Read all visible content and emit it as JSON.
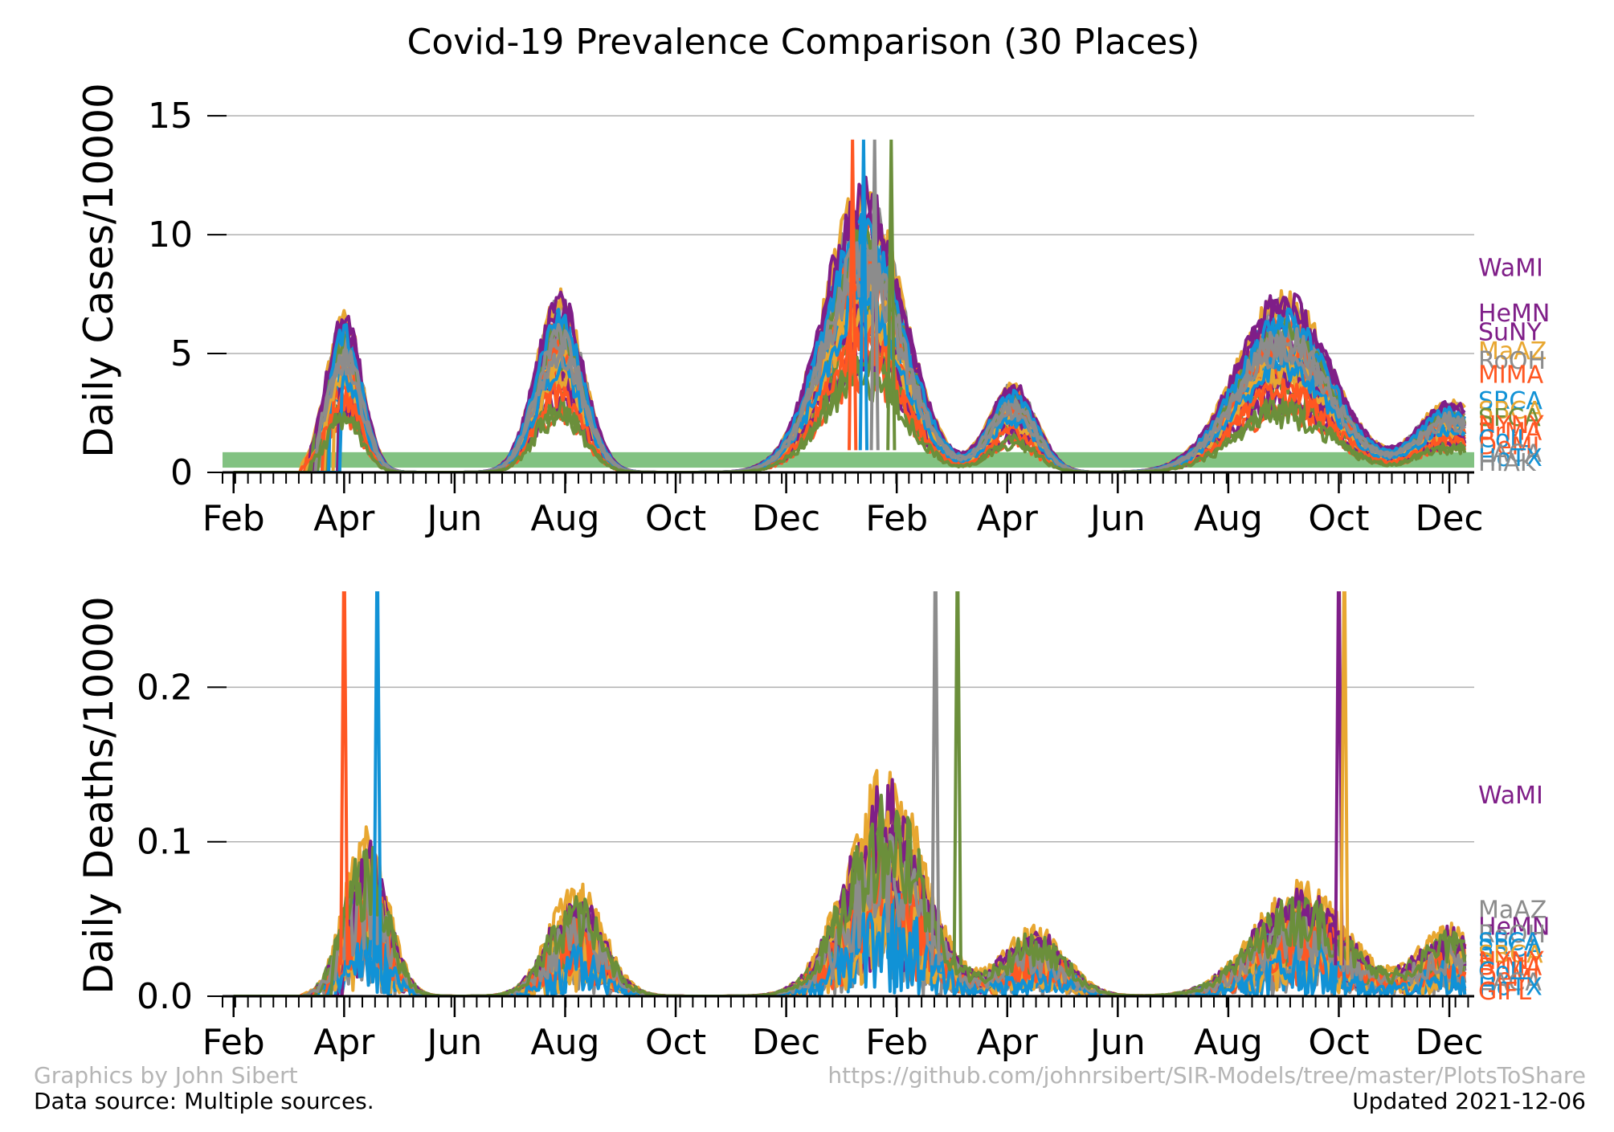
{
  "chart_data": {
    "title": "Covid-19 Prevalence Comparison (30 Places)",
    "type": "line",
    "footer": {
      "credit": "Graphics by John Sibert",
      "source": "Data source: Multiple sources.",
      "url": "https://github.com/johnrsibert/SIR-Models/tree/master/PlotsToShare",
      "updated": "Updated 2021-12-06"
    },
    "x_ticks": [
      "Feb",
      "Apr",
      "Jun",
      "Aug",
      "Oct",
      "Dec",
      "Feb",
      "Apr",
      "Jun",
      "Aug",
      "Oct",
      "Dec"
    ],
    "x_tick_months": [
      1,
      3,
      5,
      7,
      9,
      11,
      13,
      15,
      17,
      19,
      21,
      23
    ],
    "x_range_months": [
      0.8,
      23.45
    ],
    "colors": [
      "#7f1e88",
      "#e8a731",
      "#ff5722",
      "#1192d6",
      "#8c8c8c",
      "#6b8f3b"
    ],
    "panels": [
      {
        "ylabel": "Daily Cases/10000",
        "ylim": [
          0,
          17
        ],
        "yticks": [
          "0",
          "5",
          "10",
          "15"
        ],
        "ytick_values": [
          0,
          5,
          10,
          15
        ],
        "grid": true,
        "band": {
          "from": 0.2,
          "to": 0.85,
          "color": "#2e9a2e"
        },
        "spike_height": 14,
        "end_labels": [
          {
            "text": "WaMI",
            "value": 8.6,
            "color": "#7f1e88"
          },
          {
            "text": "HeMN",
            "value": 6.7,
            "color": "#7f1e88"
          },
          {
            "text": "SuNY",
            "value": 5.9,
            "color": "#7f1e88"
          },
          {
            "text": "MaAZ",
            "value": 5.1,
            "color": "#e8a731"
          },
          {
            "text": "RoOH",
            "value": 4.7,
            "color": "#8c8c8c"
          },
          {
            "text": "MIMA",
            "value": 4.1,
            "color": "#ff5722"
          },
          {
            "text": "SRCA",
            "value": 3.0,
            "color": "#1192d6"
          },
          {
            "text": "SBCA",
            "value": 2.6,
            "color": "#e8a731"
          },
          {
            "text": "SFCA",
            "value": 2.3,
            "color": "#6b8f3b"
          },
          {
            "text": "NYNY",
            "value": 2.0,
            "color": "#ff5722"
          },
          {
            "text": "BrMA",
            "value": 1.7,
            "color": "#ff5722"
          },
          {
            "text": "CoIL",
            "value": 1.4,
            "color": "#1192d6"
          },
          {
            "text": "DeMI",
            "value": 1.1,
            "color": "#ff5722"
          },
          {
            "text": "LACA",
            "value": 0.8,
            "color": "#8c8c8c"
          },
          {
            "text": "HoTX",
            "value": 0.6,
            "color": "#1192d6"
          },
          {
            "text": "HIAK",
            "value": 0.4,
            "color": "#8c8c8c"
          }
        ]
      },
      {
        "ylabel": "Daily Deaths/10000",
        "ylim": [
          0,
          0.26
        ],
        "yticks": [
          "0.0",
          "0.1",
          "0.2"
        ],
        "ytick_values": [
          0,
          0.1,
          0.2
        ],
        "grid": true,
        "spike_height": 0.3,
        "end_labels": [
          {
            "text": "WaMI",
            "value": 0.13,
            "color": "#7f1e88"
          },
          {
            "text": "MaAZ",
            "value": 0.056,
            "color": "#8c8c8c"
          },
          {
            "text": "HeMN",
            "value": 0.045,
            "color": "#7f1e88"
          },
          {
            "text": "RoOH",
            "value": 0.04,
            "color": "#8c8c8c"
          },
          {
            "text": "SFCA",
            "value": 0.035,
            "color": "#1192d6"
          },
          {
            "text": "SRCA",
            "value": 0.031,
            "color": "#1192d6"
          },
          {
            "text": "SBCA",
            "value": 0.027,
            "color": "#e8a731"
          },
          {
            "text": "NYNY",
            "value": 0.023,
            "color": "#ff5722"
          },
          {
            "text": "BrMA",
            "value": 0.019,
            "color": "#ff5722"
          },
          {
            "text": "CoIL",
            "value": 0.016,
            "color": "#1192d6"
          },
          {
            "text": "DeMI",
            "value": 0.012,
            "color": "#ff5722"
          },
          {
            "text": "LACA",
            "value": 0.009,
            "color": "#8c8c8c"
          },
          {
            "text": "HoTX",
            "value": 0.006,
            "color": "#1192d6"
          },
          {
            "text": "GIFL",
            "value": 0.003,
            "color": "#ff5722"
          }
        ]
      }
    ]
  }
}
